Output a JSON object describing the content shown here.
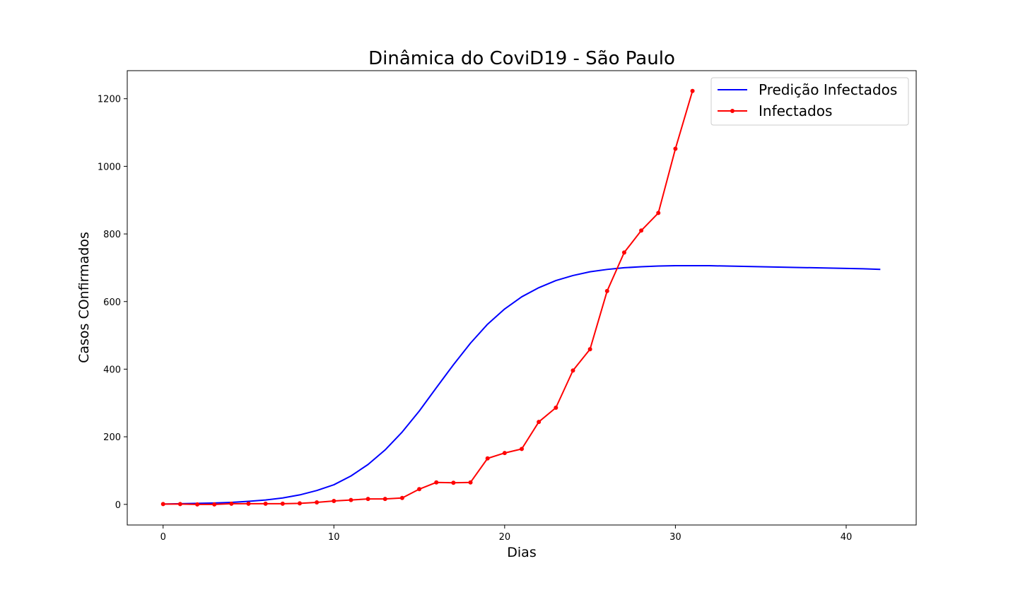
{
  "chart_data": {
    "type": "line",
    "title": "Dinâmica do CoviD19 - São Paulo",
    "xlabel": "Dias",
    "ylabel": "Casos COnfirmados",
    "xlim": [
      -2.1,
      44.1
    ],
    "ylim": [
      -61,
      1283
    ],
    "xticks": [
      0,
      10,
      20,
      30,
      40
    ],
    "yticks": [
      0,
      200,
      400,
      600,
      800,
      1000,
      1200
    ],
    "grid": false,
    "legend_position": "top-right",
    "series": [
      {
        "name": "Predição Infectados",
        "color": "#0000ff",
        "marker": "none",
        "x": [
          0,
          1,
          2,
          3,
          4,
          5,
          6,
          7,
          8,
          9,
          10,
          11,
          12,
          13,
          14,
          15,
          16,
          17,
          18,
          19,
          20,
          21,
          22,
          23,
          24,
          25,
          26,
          27,
          28,
          29,
          30,
          31,
          32,
          33,
          34,
          35,
          36,
          37,
          38,
          39,
          40,
          41,
          42
        ],
        "y": [
          1,
          2,
          3,
          4,
          6,
          9,
          13,
          19,
          28,
          41,
          58,
          84,
          118,
          161,
          214,
          276,
          345,
          413,
          477,
          533,
          578,
          614,
          641,
          662,
          677,
          688,
          695,
          700,
          703,
          705,
          706,
          706,
          706,
          705,
          704,
          703,
          702,
          701,
          700,
          699,
          698,
          697,
          695
        ]
      },
      {
        "name": "Infectados",
        "color": "#ff0000",
        "marker": "circle",
        "x": [
          0,
          1,
          2,
          3,
          4,
          5,
          6,
          7,
          8,
          9,
          10,
          11,
          12,
          13,
          14,
          15,
          16,
          17,
          18,
          19,
          20,
          21,
          22,
          23,
          24,
          25,
          26,
          27,
          28,
          29,
          30,
          31
        ],
        "y": [
          1,
          1,
          0,
          0,
          2,
          2,
          2,
          2,
          3,
          6,
          10,
          13,
          16,
          16,
          19,
          45,
          65,
          64,
          65,
          136,
          152,
          164,
          244,
          286,
          396,
          459,
          631,
          745,
          810,
          862,
          1052,
          1223
        ]
      }
    ]
  }
}
